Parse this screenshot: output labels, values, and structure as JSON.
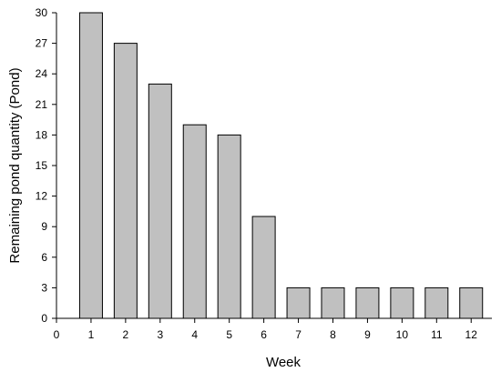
{
  "chart_data": {
    "type": "bar",
    "title": "",
    "xlabel": "Week",
    "ylabel": "Remaining pond quantity (Pond)",
    "categories": [
      1,
      2,
      3,
      4,
      5,
      6,
      7,
      8,
      9,
      10,
      11,
      12
    ],
    "values": [
      30,
      27,
      23,
      19,
      18,
      10,
      3,
      3,
      3,
      3,
      3,
      3
    ],
    "xlim": [
      0,
      12.6
    ],
    "ylim": [
      0,
      30
    ],
    "xticks": [
      0,
      1,
      2,
      3,
      4,
      5,
      6,
      7,
      8,
      9,
      10,
      11,
      12
    ],
    "yticks": [
      0,
      3,
      6,
      9,
      12,
      15,
      18,
      21,
      24,
      27,
      30
    ],
    "bar_color": "#c0c0c0",
    "bar_edge_color": "#000000",
    "grid": false,
    "legend": "none"
  }
}
